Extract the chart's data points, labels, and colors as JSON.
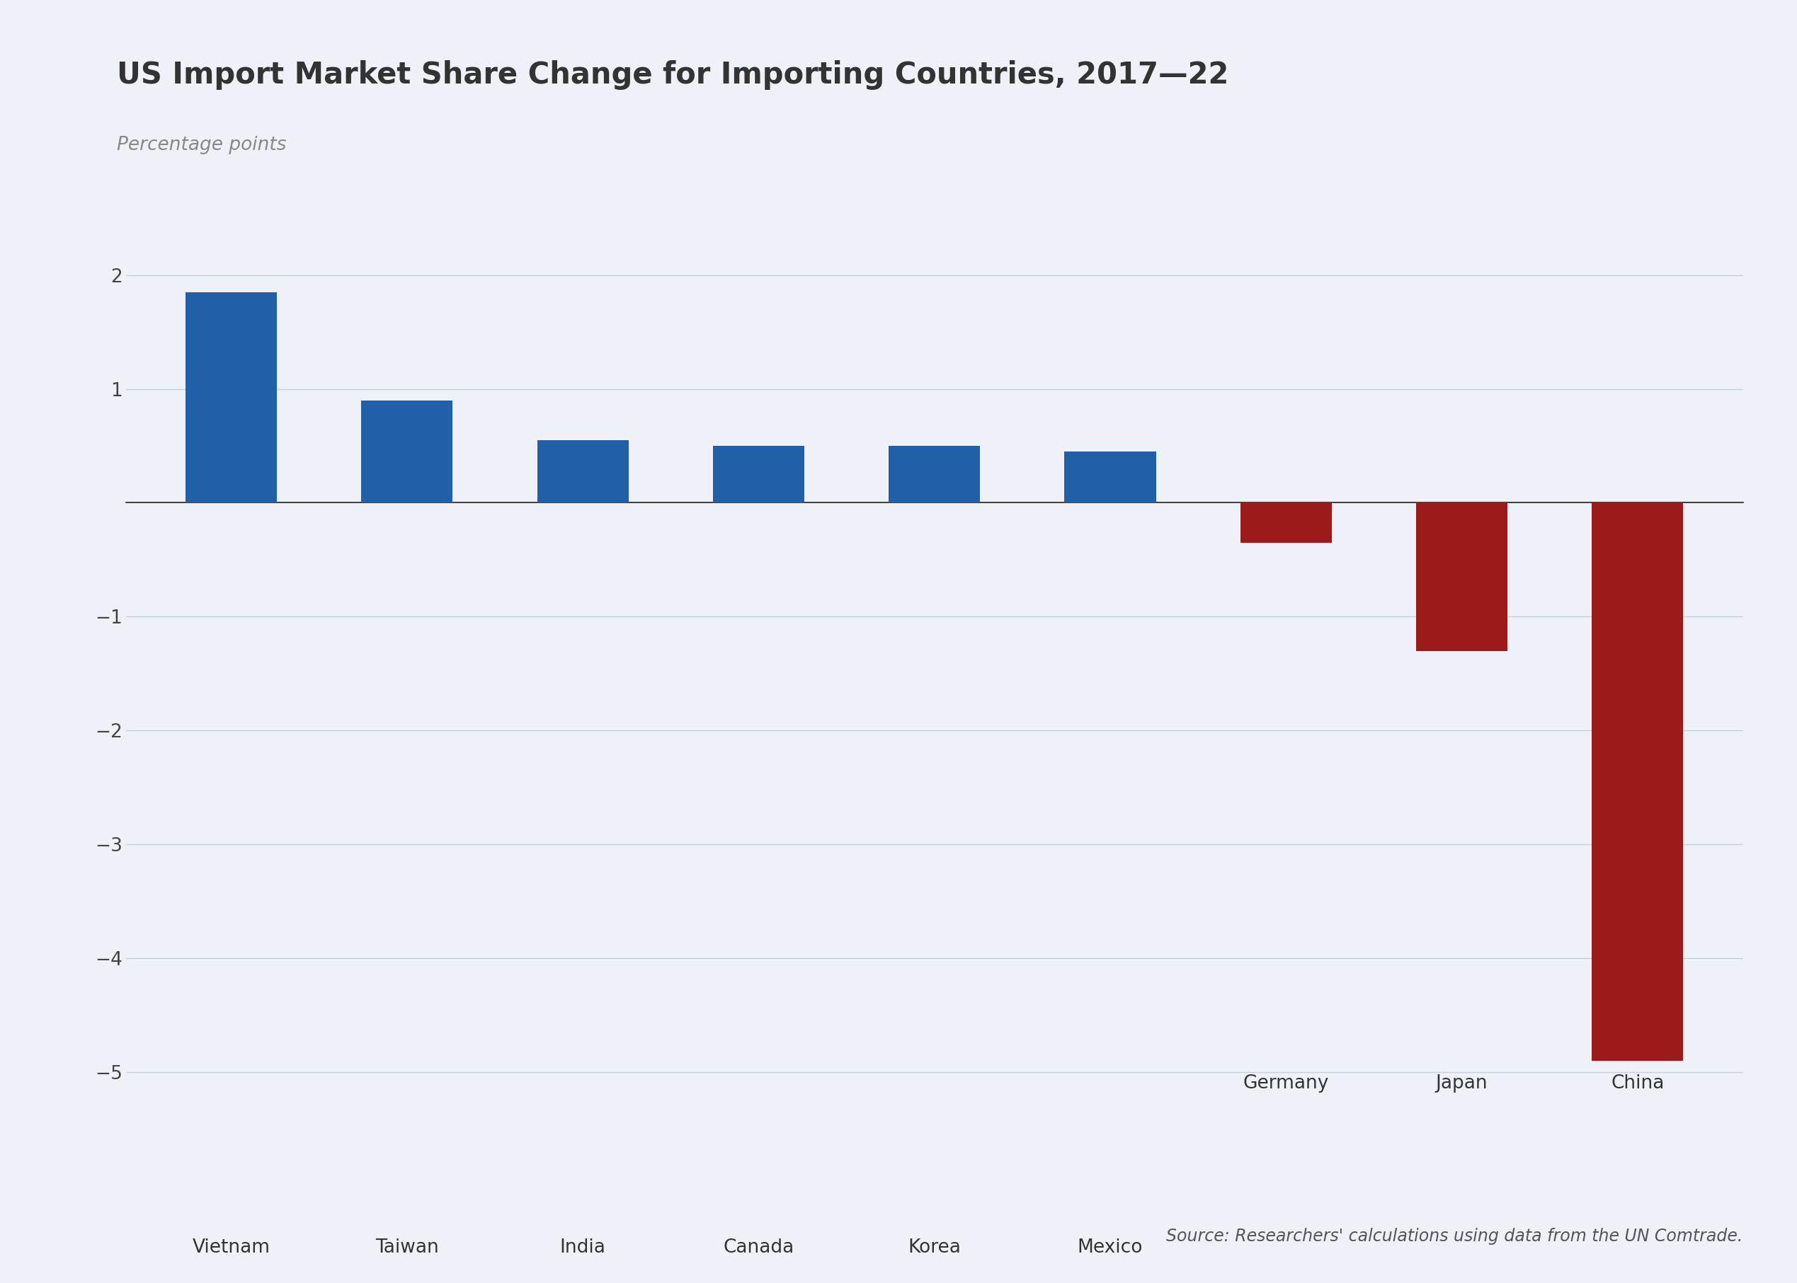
{
  "title": "US Import Market Share Change for Importing Countries, 2017—22",
  "ylabel": "Percentage points",
  "categories": [
    "Vietnam",
    "Taiwan",
    "India",
    "Canada",
    "Korea",
    "Mexico",
    "Germany",
    "Japan",
    "China"
  ],
  "values": [
    1.85,
    0.9,
    0.55,
    0.5,
    0.5,
    0.45,
    -0.35,
    -1.3,
    -4.9
  ],
  "bar_colors_positive": "#2060a8",
  "bar_colors_negative": "#9b1b1b",
  "background_color": "#eef2f8",
  "ylim": [
    -5.5,
    2.5
  ],
  "yticks": [
    -5,
    -4,
    -3,
    -2,
    -1,
    0,
    1,
    2
  ],
  "ytick_labels": [
    "−5",
    "−4",
    "−3",
    "−2",
    "−1",
    "",
    "1",
    "2"
  ],
  "source_text": "Source: Researchers' calculations using data from the UN Comtrade.",
  "title_fontsize": 30,
  "ylabel_fontsize": 19,
  "tick_fontsize": 19,
  "xtick_fontsize": 19,
  "source_fontsize": 17,
  "bar_width": 0.52
}
